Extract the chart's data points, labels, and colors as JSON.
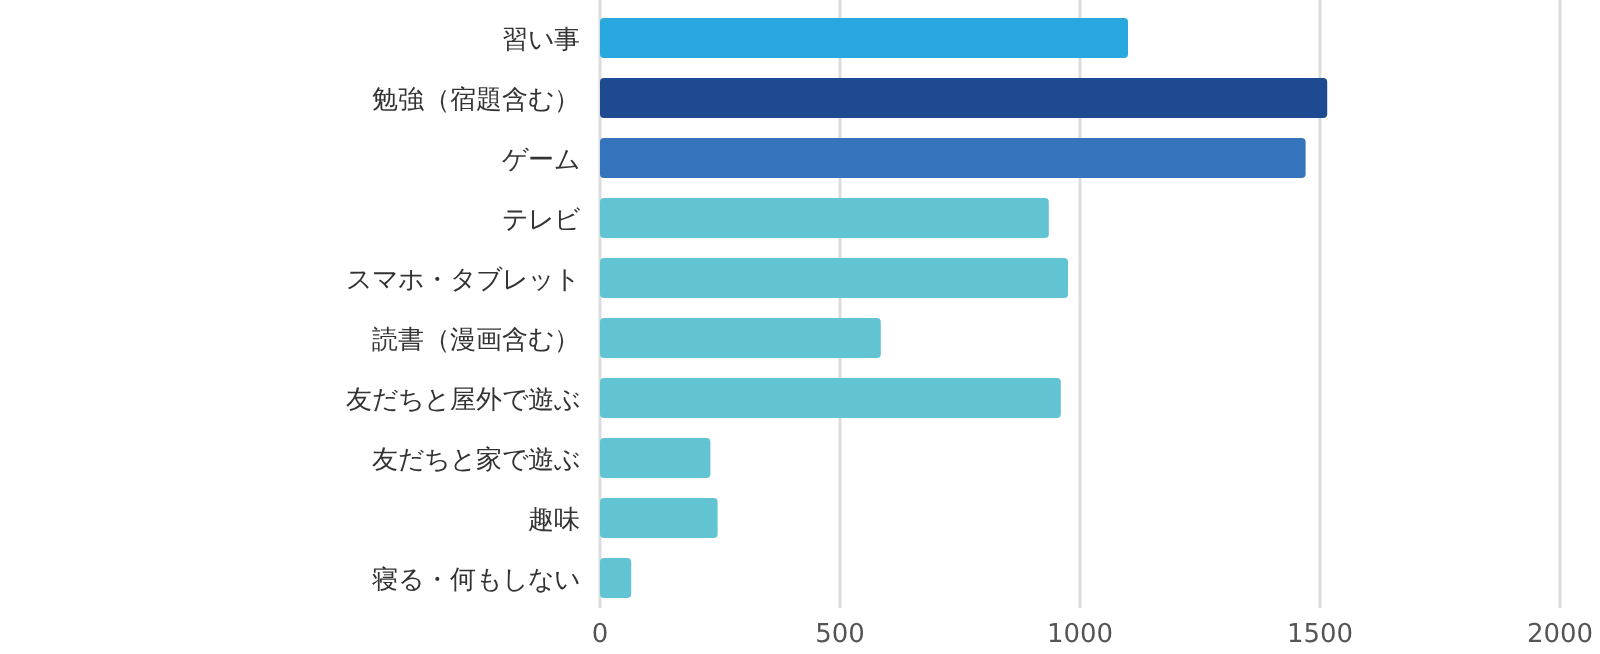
{
  "chart_data": {
    "type": "bar",
    "orientation": "horizontal",
    "categories": [
      "習い事",
      "勉強（宿題含む）",
      "ゲーム",
      "テレビ",
      "スマホ・タブレット",
      "読書（漫画含む）",
      "友だちと屋外で遊ぶ",
      "友だちと家で遊ぶ",
      "趣味",
      "寝る・何もしない"
    ],
    "values": [
      1100,
      1515,
      1470,
      935,
      975,
      585,
      960,
      230,
      245,
      65
    ],
    "colors": [
      "#29a8e0",
      "#1d4a91",
      "#3574bd",
      "#62c3d3",
      "#62c3d3",
      "#62c3d3",
      "#62c3d3",
      "#62c3d3",
      "#62c3d3",
      "#62c3d3"
    ],
    "xlim": [
      0,
      2000
    ],
    "xticks": [
      0,
      500,
      1000,
      1500,
      2000
    ],
    "grid": "x"
  }
}
